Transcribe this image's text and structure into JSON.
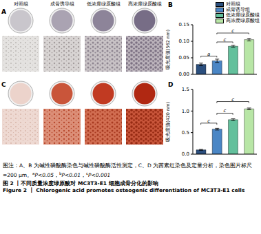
{
  "panels": [
    {
      "label": "A",
      "column_labels": [
        "对照组",
        "成骨诱导组",
        "低浓度绿原酸组",
        "高浓度绿原酸组"
      ]
    },
    {
      "label": "C"
    }
  ],
  "chart_data": [
    {
      "type": "bar",
      "title": "B",
      "y_label": "吸光度值(562 nm)",
      "categories": [
        "对照组",
        "成骨诱导组",
        "低浓度绿原酸组",
        "高浓度绿原酸组"
      ],
      "values": [
        0.03,
        0.041,
        0.085,
        0.105
      ],
      "errors": [
        0.004,
        0.005,
        0.003,
        0.004
      ],
      "colors": [
        "#2b4f7e",
        "#4a86c5",
        "#63c09c",
        "#b8e6a6"
      ],
      "ylim": [
        0,
        0.15
      ],
      "yticks": [
        {
          "value": 0,
          "label": "0.00"
        },
        {
          "value": 0.05,
          "label": "0.05"
        },
        {
          "value": 0.1,
          "label": "0.10"
        },
        {
          "value": 0.15,
          "label": "0.15"
        }
      ],
      "grid": false,
      "tick_labels": "y",
      "legend": "upper right",
      "annotations": [
        {
          "text": "a",
          "between": [
            "对照组",
            "成骨诱导组"
          ],
          "y": 0.055
        },
        {
          "text": "c",
          "between": [
            "成骨诱导组",
            "低浓度绿原酸组"
          ],
          "y": 0.098
        },
        {
          "text": "c",
          "between": [
            "成骨诱导组",
            "高浓度绿原酸组"
          ],
          "y": 0.125
        }
      ]
    },
    {
      "type": "bar",
      "title": "D",
      "y_label": "吸光度值(420 nm)",
      "categories": [
        "对照组",
        "成骨诱导组",
        "低浓度绿原酸组",
        "高浓度绿原酸组"
      ],
      "values": [
        0.1,
        0.58,
        0.8,
        1.05
      ],
      "errors": [
        0.01,
        0.02,
        0.02,
        0.02
      ],
      "colors": [
        "#2b4f7e",
        "#4a86c5",
        "#63c09c",
        "#b8e6a6"
      ],
      "ylim": [
        0,
        1.5
      ],
      "yticks": [
        {
          "value": 0,
          "label": "0.0"
        },
        {
          "value": 0.5,
          "label": "0.5"
        },
        {
          "value": 1,
          "label": "1.0"
        },
        {
          "value": 1.5,
          "label": "1.5"
        }
      ],
      "grid": false,
      "tick_labels": "y",
      "annotations": [
        {
          "text": "c",
          "between": [
            "对照组",
            "成骨诱导组"
          ],
          "y": 0.72
        },
        {
          "text": "c",
          "between": [
            "成骨诱导组",
            "低浓度绿原酸组"
          ],
          "y": 0.95
        },
        {
          "text": "c",
          "between": [
            "成骨诱导组",
            "高浓度绿原酸组"
          ],
          "y": 1.22
        }
      ]
    }
  ],
  "caption": {
    "note": "图注：A、B 为碱性磷酸酶染色与碱性磷酸酶活性测定，C、D 为茜素红染色及定量分析，染色图片标尺 =200 μm。",
    "significance": [
      {
        "mark": "a",
        "text": "P<0.05"
      },
      {
        "mark": "b",
        "text": "P<0.01"
      },
      {
        "mark": "c",
        "text": "P<0.001"
      }
    ],
    "separator": "，",
    "title_zh": "图 2 丨不同质量浓度绿原酸对 MC3T3-E1 细胞成骨分化的影响",
    "title_en": "Figure 2 丨 Chlorogenic acid promotes osteogenic differentiation of MC3T3-E1 cells"
  }
}
